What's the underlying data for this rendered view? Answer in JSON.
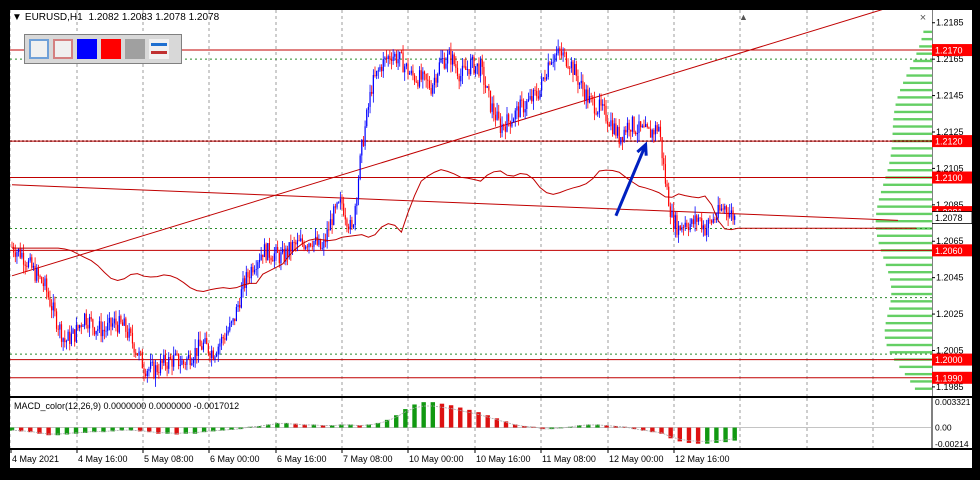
{
  "title": {
    "symbol": "EURUSD,H1",
    "ohlc": "1.2082 1.2083 1.2078 1.2078"
  },
  "toolbar": {
    "tools": [
      {
        "name": "outline-rect-blue",
        "color": "#6fa0d8"
      },
      {
        "name": "outline-rect-red",
        "color": "#d48080"
      },
      {
        "name": "fill-rect-blue",
        "color": "#0000ff"
      },
      {
        "name": "fill-rect-red",
        "color": "#ff0000"
      },
      {
        "name": "fill-rect-gray",
        "color": "#a0a0a0"
      },
      {
        "name": "lines-tool",
        "color": "#1e6fd0"
      }
    ]
  },
  "macd": {
    "label": "MACD_color(12,26,9) 0.0000000 0.0000000 -0.0017012",
    "scale": [
      "0.003321",
      "0.00",
      "-0.00214"
    ],
    "range": [
      -0.00214,
      0.003321
    ]
  },
  "colors": {
    "bull": "#0000ff",
    "bear": "#ff0000",
    "level_line": "#c00000",
    "ma_line": "#c00000",
    "arrow": "#0020c0",
    "grid": "#333333",
    "volume_profile": "#22bb22",
    "macd_pos": "#119911",
    "macd_neg": "#dd1111",
    "current_price_bg": "#ffffff",
    "level_label_bg": "#ff0000"
  },
  "chart_data": {
    "type": "candlestick",
    "title": "EURUSD,H1",
    "y_ticks": [
      "1.2185",
      "1.2165",
      "1.2145",
      "1.2125",
      "1.2105",
      "1.2085",
      "1.2065",
      "1.2045",
      "1.2025",
      "1.2005",
      "1.1985"
    ],
    "ylim": [
      1.198,
      1.2192
    ],
    "x_ticks": [
      "4 May 2021",
      "4 May 16:00",
      "5 May 08:00",
      "6 May 00:00",
      "6 May 16:00",
      "7 May 08:00",
      "10 May 00:00",
      "10 May 16:00",
      "11 May 08:00",
      "12 May 00:00",
      "12 May 16:00"
    ],
    "current_price": {
      "label": "1.2078",
      "value": 1.2078
    },
    "horizontal_levels": [
      {
        "label": "1.2170",
        "value": 1.217
      },
      {
        "label": "1.2120",
        "value": 1.212
      },
      {
        "label": "1.2100",
        "value": 1.21
      },
      {
        "label": "1.2081",
        "value": 1.2081
      },
      {
        "label": "1.2060",
        "value": 1.206
      },
      {
        "label": "1.2000",
        "value": 1.2
      },
      {
        "label": "1.1990",
        "value": 1.199
      }
    ],
    "green_dotted_levels": [
      1.2165,
      1.2072,
      1.2034,
      1.2003
    ],
    "close_path": [
      [
        0,
        1.2062
      ],
      [
        6,
        1.2058
      ],
      [
        12,
        1.205
      ],
      [
        20,
        1.204
      ],
      [
        26,
        1.2024
      ],
      [
        32,
        1.201
      ],
      [
        38,
        1.2014
      ],
      [
        44,
        1.2024
      ],
      [
        50,
        1.2018
      ],
      [
        56,
        1.2016
      ],
      [
        62,
        1.202
      ],
      [
        68,
        1.2018
      ],
      [
        74,
        1.2008
      ],
      [
        80,
        1.1996
      ],
      [
        86,
        1.1994
      ],
      [
        92,
        1.1998
      ],
      [
        98,
        1.2
      ],
      [
        104,
        1.1998
      ],
      [
        110,
        1.2004
      ],
      [
        116,
        1.2008
      ],
      [
        122,
        1.2004
      ],
      [
        128,
        1.2012
      ],
      [
        134,
        1.202
      ],
      [
        140,
        1.204
      ],
      [
        146,
        1.2052
      ],
      [
        152,
        1.206
      ],
      [
        158,
        1.2058
      ],
      [
        164,
        1.2056
      ],
      [
        170,
        1.2062
      ],
      [
        176,
        1.2064
      ],
      [
        182,
        1.2066
      ],
      [
        188,
        1.206
      ],
      [
        194,
        1.2078
      ],
      [
        200,
        1.2086
      ],
      [
        206,
        1.207
      ],
      [
        212,
        1.2116
      ],
      [
        218,
        1.215
      ],
      [
        224,
        1.2162
      ],
      [
        230,
        1.2168
      ],
      [
        236,
        1.2164
      ],
      [
        242,
        1.2156
      ],
      [
        248,
        1.2154
      ],
      [
        254,
        1.215
      ],
      [
        260,
        1.2164
      ],
      [
        266,
        1.2166
      ],
      [
        272,
        1.2156
      ],
      [
        278,
        1.2162
      ],
      [
        284,
        1.216
      ],
      [
        290,
        1.214
      ],
      [
        296,
        1.2128
      ],
      [
        302,
        1.2132
      ],
      [
        308,
        1.2138
      ],
      [
        314,
        1.2142
      ],
      [
        320,
        1.2148
      ],
      [
        326,
        1.2166
      ],
      [
        332,
        1.2168
      ],
      [
        338,
        1.2164
      ],
      [
        344,
        1.2152
      ],
      [
        350,
        1.2142
      ],
      [
        356,
        1.2138
      ],
      [
        362,
        1.2132
      ],
      [
        368,
        1.2122
      ],
      [
        374,
        1.213
      ],
      [
        380,
        1.2126
      ],
      [
        386,
        1.2124
      ],
      [
        392,
        1.2128
      ],
      [
        396,
        1.2098
      ],
      [
        400,
        1.2078
      ],
      [
        404,
        1.2072
      ],
      [
        408,
        1.2076
      ],
      [
        412,
        1.2074
      ],
      [
        416,
        1.2078
      ],
      [
        420,
        1.2072
      ],
      [
        424,
        1.2076
      ],
      [
        428,
        1.208
      ],
      [
        432,
        1.2084
      ],
      [
        436,
        1.208
      ],
      [
        438,
        1.2078
      ]
    ],
    "macd_series": [
      -0.0004,
      -0.0005,
      -0.0006,
      -0.0008,
      -0.001,
      -0.001,
      -0.0009,
      -0.0008,
      -0.0007,
      -0.0006,
      -0.0006,
      -0.0005,
      -0.0004,
      -0.0004,
      -0.0005,
      -0.0006,
      -0.0008,
      -0.0008,
      -0.0009,
      -0.0008,
      -0.0008,
      -0.0006,
      -0.0005,
      -0.0004,
      -0.0003,
      -0.0002,
      0.0001,
      0.0002,
      0.0004,
      0.0006,
      0.0006,
      0.0005,
      0.0004,
      0.0004,
      0.0003,
      0.0003,
      0.0004,
      0.0004,
      0.0003,
      0.0004,
      0.0006,
      0.001,
      0.0016,
      0.0024,
      0.003,
      0.0033,
      0.0033,
      0.0031,
      0.0029,
      0.0026,
      0.0023,
      0.002,
      0.0016,
      0.0012,
      0.0008,
      0.0004,
      0.0002,
      0.0001,
      -0.0002,
      -0.0002,
      -0.0001,
      0.0001,
      0.0003,
      0.0004,
      0.0004,
      0.0003,
      0.0002,
      0.0001,
      -0.0002,
      -0.0004,
      -0.0006,
      -0.0008,
      -0.0014,
      -0.0018,
      -0.002,
      -0.0021,
      -0.0021,
      -0.002,
      -0.0019,
      -0.0017
    ],
    "trend_lines": [
      {
        "name": "rising-trendline",
        "from": [
          0,
          1.2046
        ],
        "to": [
          440,
          1.2168
        ]
      },
      {
        "name": "falling-trendline",
        "from": [
          0,
          1.2096
        ],
        "to": [
          440,
          1.208
        ]
      }
    ],
    "arrow": {
      "from": [
        366,
        1.2079
      ],
      "to": [
        384,
        1.2118
      ]
    }
  }
}
